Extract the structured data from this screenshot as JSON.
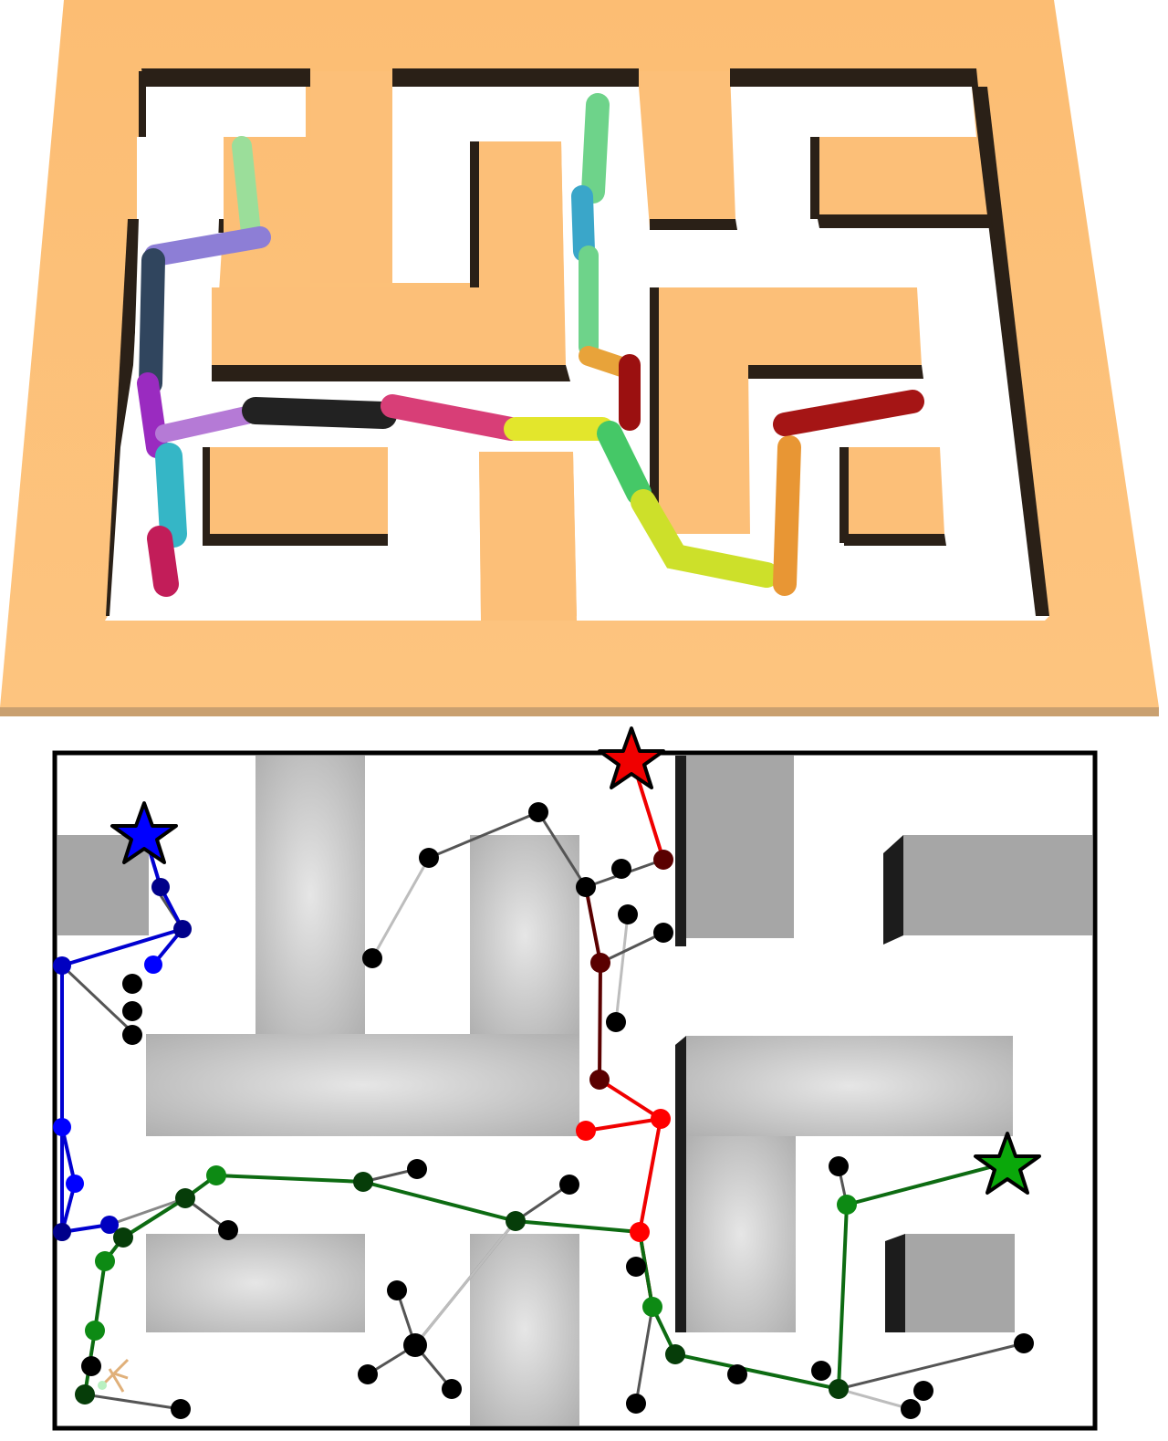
{
  "figure": {
    "top_panel": "3d-maze-render-with-ant-trajectories",
    "bottom_panel": "2d-maze-planning-graph"
  },
  "colors": {
    "maze_floor": "#fcbf78",
    "maze_wall_top": "#fcbf78",
    "maze_wall_shadow": "#2a2017",
    "graph_obstacle_light": "#e3e3e3",
    "graph_obstacle_dark": "#a6a6a6",
    "graph_obstacle_side": "#1c1c1c",
    "node_black": "#000000",
    "edge_gray": "#555555",
    "edge_light": "#bdbdbd",
    "path_blue": "#0000d0",
    "path_red": "#f00000",
    "path_darkred": "#5a0000",
    "path_green": "#0d6b12",
    "star_blue": "#0000ff",
    "star_red": "#f00000",
    "star_green": "#0aa80a"
  },
  "markers": [
    {
      "name": "blue-start-star",
      "color": "#0000ff"
    },
    {
      "name": "red-goal-star",
      "color": "#f00000"
    },
    {
      "name": "green-goal-star",
      "color": "#0aa80a"
    }
  ],
  "trajectory_colors": [
    "#9bde9a",
    "#8d7ed6",
    "#30455e",
    "#9a2bc0",
    "#35b6c6",
    "#c21d59",
    "#222222",
    "#d83e77",
    "#e3e62c",
    "#3aa6c9",
    "#6ed38a",
    "#e8a33a",
    "#9b1010",
    "#45c867",
    "#cde02a",
    "#e89634",
    "#a51515"
  ]
}
